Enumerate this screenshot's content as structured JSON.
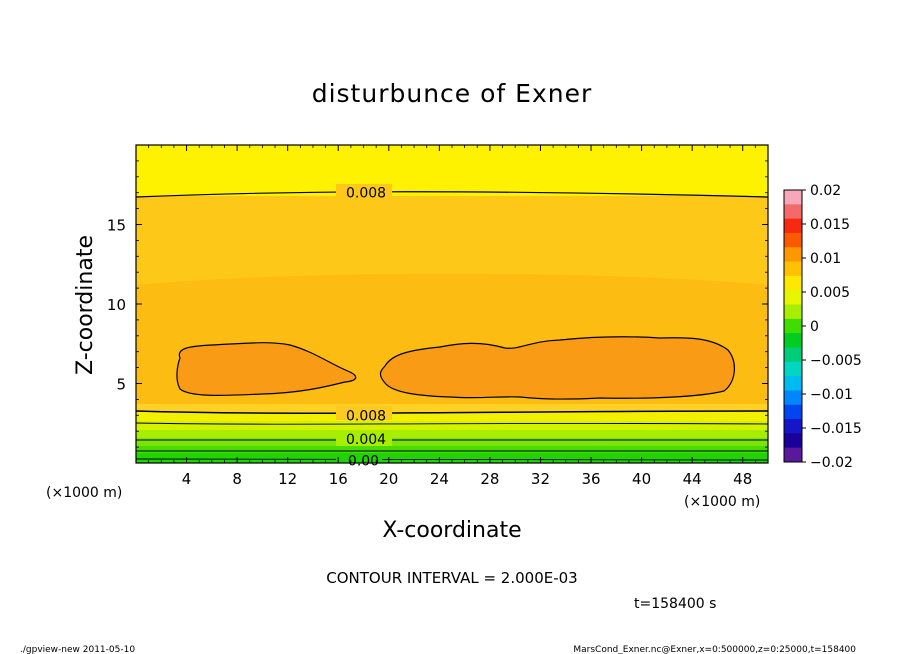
{
  "chart_data": {
    "type": "heatmap",
    "title": "disturbunce of Exner",
    "xlabel": "X-coordinate",
    "ylabel": "Z-coordinate",
    "x_unit_left": "(×1000 m)",
    "x_unit_right": "(×1000 m)",
    "xlim": [
      0,
      50
    ],
    "ylim": [
      0,
      20
    ],
    "x_ticks": [
      4,
      8,
      12,
      16,
      20,
      24,
      28,
      32,
      36,
      40,
      44,
      48
    ],
    "x_tick_labels": [
      "4",
      "8",
      "12",
      "16",
      "20",
      "24",
      "28",
      "32",
      "36",
      "40",
      "44",
      "48"
    ],
    "y_ticks": [
      5,
      10,
      15
    ],
    "y_tick_labels": [
      "5",
      "10",
      "15"
    ],
    "contour_labels": [
      {
        "text": "0.008",
        "x": 18.2,
        "z": 17.0
      },
      {
        "text": "0.008",
        "x": 18.2,
        "z": 3.0
      },
      {
        "text": "0.004",
        "x": 18.2,
        "z": 1.5
      },
      {
        "text": "0.00",
        "x": 18.0,
        "z": 0.15
      }
    ],
    "contour_interval_text": "CONTOUR INTERVAL = 2.000E-03",
    "time_text": "t=158400 s",
    "colorbar": {
      "min": -0.02,
      "max": 0.02,
      "tick_values": [
        0.02,
        0.015,
        0.01,
        0.005,
        0,
        -0.005,
        -0.01,
        -0.015,
        -0.02
      ],
      "tick_labels": [
        "0.02",
        "0.015",
        "0.01",
        "0.005",
        "0",
        "−0.005",
        "−0.01",
        "−0.015",
        "−0.02"
      ],
      "colors": [
        "#f7a8b8",
        "#f46a6a",
        "#f62a10",
        "#fc5a00",
        "#fd9800",
        "#ffc200",
        "#fde800",
        "#e6f600",
        "#a8ee00",
        "#40dd00",
        "#00cc22",
        "#00cc7a",
        "#00d6c2",
        "#00bbf0",
        "#0086ff",
        "#0046f0",
        "#1616c8",
        "#1a0099",
        "#5a189a"
      ]
    },
    "layers": [
      {
        "name": "upper yellow",
        "value_range": "0.008 to 0.010",
        "color": "#fff200"
      },
      {
        "name": "middle light orange",
        "value_range": "0.008 to 0.010",
        "color": "#fdcb1f"
      },
      {
        "name": "center orange",
        "value_range": "0.010 to 0.012",
        "color": "#fdbc14"
      },
      {
        "name": "cells",
        "value_range": "> 0.012",
        "color": "#fa9b14"
      }
    ]
  },
  "footer": {
    "left": "./gpview-new   2011-05-10",
    "right": "MarsCond_Exner.nc@Exner,x=0:500000,z=0:25000,t=158400"
  }
}
